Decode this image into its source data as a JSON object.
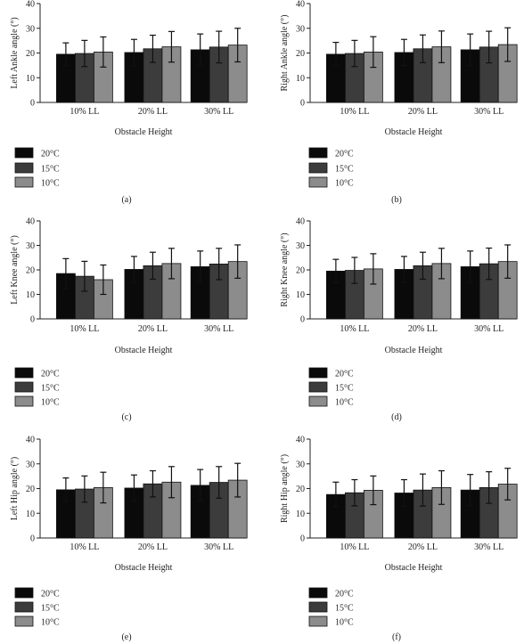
{
  "figure": {
    "legend_items": [
      {
        "label": "20°C",
        "color": "#0a0a0a"
      },
      {
        "label": "15°C",
        "color": "#3c3c3c"
      },
      {
        "label": "10°C",
        "color": "#8c8c8c"
      }
    ]
  },
  "chart_data": [
    {
      "type": "bar",
      "panel_label": "(a)",
      "categories": [
        "10% LL",
        "20% LL",
        "30% LL"
      ],
      "xlabel": "Obstacle Height",
      "ylabel": "Left Ankle angle (°)",
      "ylim": [
        0,
        40
      ],
      "yticks": [
        0,
        10,
        20,
        30,
        40
      ],
      "legend": "below",
      "series": [
        {
          "name": "20°C",
          "values": [
            19.5,
            20.2,
            21.3
          ],
          "errors": [
            4.6,
            5.3,
            6.4
          ]
        },
        {
          "name": "15°C",
          "values": [
            19.8,
            21.7,
            22.4
          ],
          "errors": [
            5.3,
            5.5,
            6.4
          ]
        },
        {
          "name": "10°C",
          "values": [
            20.4,
            22.5,
            23.2
          ],
          "errors": [
            6.1,
            6.2,
            6.8
          ]
        }
      ]
    },
    {
      "type": "bar",
      "panel_label": "(b)",
      "categories": [
        "10% LL",
        "20% LL",
        "30% LL"
      ],
      "xlabel": "Obstacle Height",
      "ylabel": "Right Ankle angle (°)",
      "ylim": [
        0,
        40
      ],
      "yticks": [
        0,
        10,
        20,
        30,
        40
      ],
      "legend": "below",
      "series": [
        {
          "name": "20°C",
          "values": [
            19.5,
            20.2,
            21.3
          ],
          "errors": [
            4.8,
            5.3,
            6.4
          ]
        },
        {
          "name": "15°C",
          "values": [
            19.8,
            21.7,
            22.4
          ],
          "errors": [
            5.3,
            5.6,
            6.4
          ]
        },
        {
          "name": "10°C",
          "values": [
            20.4,
            22.5,
            23.4
          ],
          "errors": [
            6.2,
            6.4,
            6.8
          ]
        }
      ]
    },
    {
      "type": "bar",
      "panel_label": "(c)",
      "categories": [
        "10% LL",
        "20% LL",
        "30% LL"
      ],
      "xlabel": "Obstacle Height",
      "ylabel": "Left Knee angle (°)",
      "ylim": [
        0,
        40
      ],
      "yticks": [
        0,
        10,
        20,
        30,
        40
      ],
      "legend": "below",
      "series": [
        {
          "name": "20°C",
          "values": [
            18.5,
            20.2,
            21.3
          ],
          "errors": [
            6.1,
            5.3,
            6.4
          ]
        },
        {
          "name": "15°C",
          "values": [
            17.4,
            21.7,
            22.4
          ],
          "errors": [
            6.1,
            5.5,
            6.4
          ]
        },
        {
          "name": "10°C",
          "values": [
            16.0,
            22.6,
            23.4
          ],
          "errors": [
            6.0,
            6.2,
            6.8
          ]
        }
      ]
    },
    {
      "type": "bar",
      "panel_label": "(d)",
      "categories": [
        "10% LL",
        "20% LL",
        "30% LL"
      ],
      "xlabel": "Obstacle Height",
      "ylabel": "Right Knee angle (°)",
      "ylim": [
        0,
        40
      ],
      "yticks": [
        0,
        10,
        20,
        30,
        40
      ],
      "legend": "below",
      "series": [
        {
          "name": "20°C",
          "values": [
            19.5,
            20.2,
            21.3
          ],
          "errors": [
            4.8,
            5.3,
            6.4
          ]
        },
        {
          "name": "15°C",
          "values": [
            19.8,
            21.7,
            22.5
          ],
          "errors": [
            5.3,
            5.5,
            6.4
          ]
        },
        {
          "name": "10°C",
          "values": [
            20.4,
            22.6,
            23.4
          ],
          "errors": [
            6.2,
            6.2,
            6.8
          ]
        }
      ]
    },
    {
      "type": "bar",
      "panel_label": "(e)",
      "categories": [
        "10% LL",
        "20% LL",
        "30% LL"
      ],
      "xlabel": "Obstacle Height",
      "ylabel": "Left Hip angle (°)",
      "ylim": [
        0,
        40
      ],
      "yticks": [
        0,
        10,
        20,
        30,
        40
      ],
      "legend": "below",
      "series": [
        {
          "name": "20°C",
          "values": [
            19.5,
            20.2,
            21.3
          ],
          "errors": [
            4.8,
            5.3,
            6.4
          ]
        },
        {
          "name": "15°C",
          "values": [
            19.8,
            21.9,
            22.5
          ],
          "errors": [
            5.3,
            5.3,
            6.4
          ]
        },
        {
          "name": "10°C",
          "values": [
            20.4,
            22.6,
            23.4
          ],
          "errors": [
            6.2,
            6.3,
            6.8
          ]
        }
      ]
    },
    {
      "type": "bar",
      "panel_label": "(f)",
      "categories": [
        "10% LL",
        "20% LL",
        "30% LL"
      ],
      "xlabel": "Obstacle Height",
      "ylabel": "Right Hip angle (°)",
      "ylim": [
        0,
        40
      ],
      "yticks": [
        0,
        10,
        20,
        30,
        40
      ],
      "legend": "below",
      "series": [
        {
          "name": "20°C",
          "values": [
            17.6,
            18.2,
            19.4
          ],
          "errors": [
            5.0,
            5.4,
            6.3
          ]
        },
        {
          "name": "15°C",
          "values": [
            18.3,
            19.4,
            20.4
          ],
          "errors": [
            5.3,
            6.5,
            6.4
          ]
        },
        {
          "name": "10°C",
          "values": [
            19.3,
            20.4,
            21.8
          ],
          "errors": [
            5.8,
            6.8,
            6.4
          ]
        }
      ]
    }
  ]
}
